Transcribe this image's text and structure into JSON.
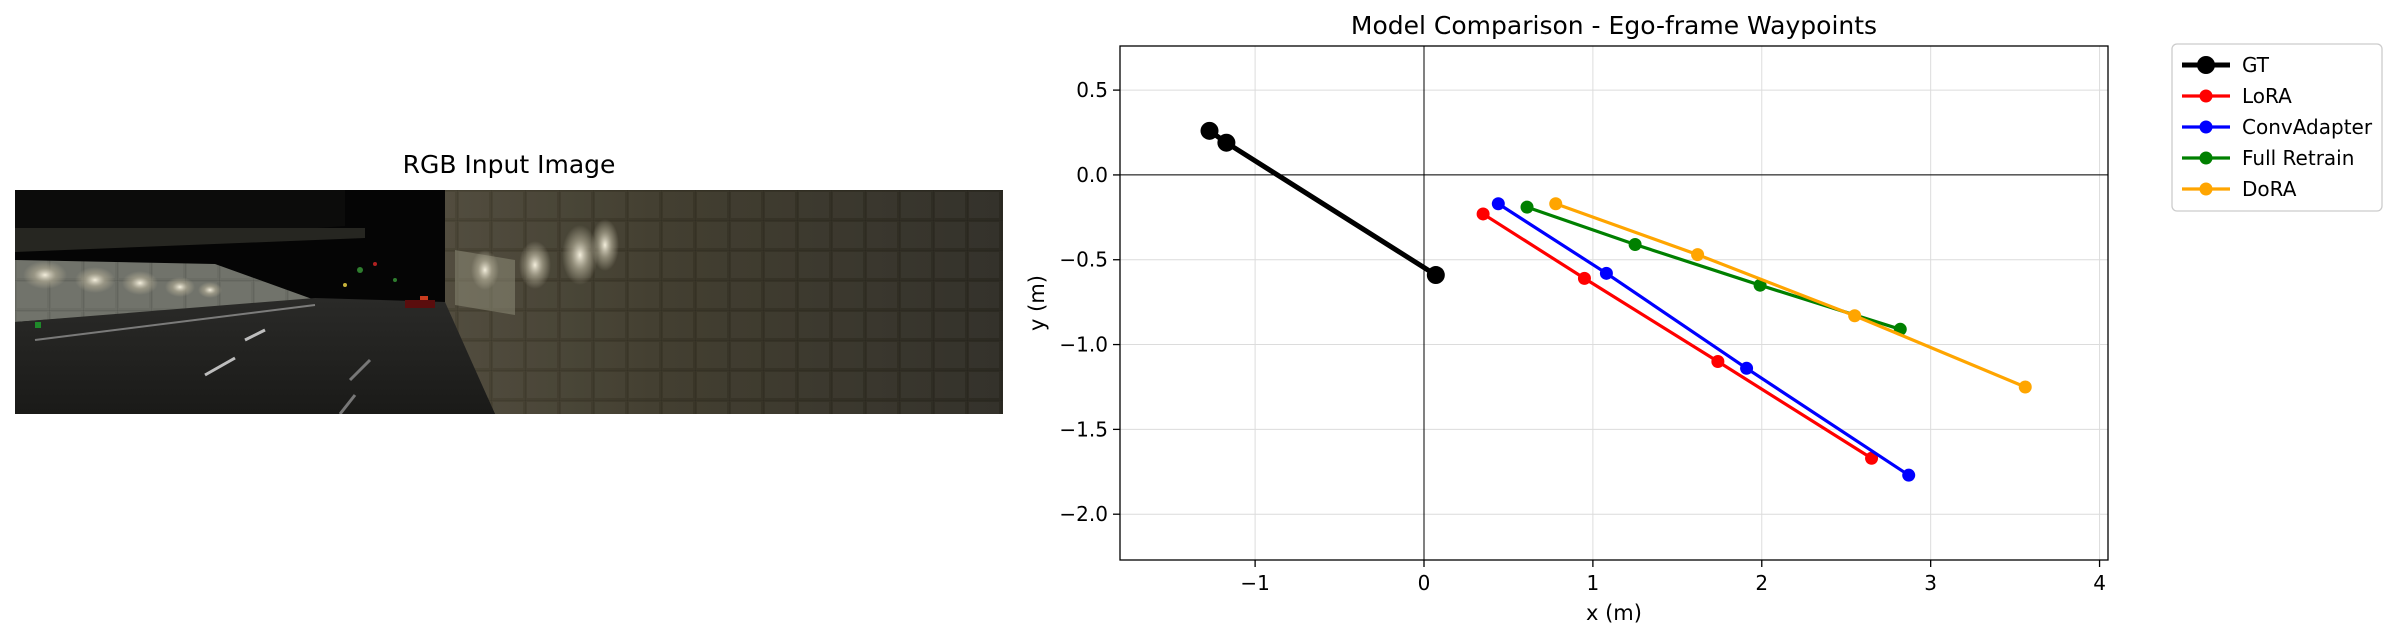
{
  "image_panel": {
    "title": "RGB Input Image"
  },
  "chart_data": {
    "type": "line",
    "title": "Model Comparison - Ego-frame Waypoints",
    "xlabel": "x (m)",
    "ylabel": "y (m)",
    "xlim": [
      -1.8,
      4.05
    ],
    "ylim": [
      -2.27,
      0.76
    ],
    "xticks": [
      -1,
      0,
      1,
      2,
      3,
      4
    ],
    "yticks": [
      0.5,
      0.0,
      -0.5,
      -1.0,
      -1.5,
      -2.0
    ],
    "xtick_labels": [
      "−1",
      "0",
      "1",
      "2",
      "3",
      "4"
    ],
    "ytick_labels": [
      "0.5",
      "0.0",
      "−0.5",
      "−1.0",
      "−1.5",
      "−2.0"
    ],
    "grid": true,
    "reference_lines": {
      "x": 0,
      "y": 0
    },
    "legend_position": "outside-top-right",
    "series": [
      {
        "name": "GT",
        "color": "#000000",
        "width": 5,
        "marker": 9,
        "points": [
          [
            -1.27,
            0.26
          ],
          [
            -1.17,
            0.19
          ],
          [
            0.07,
            -0.59
          ]
        ]
      },
      {
        "name": "LoRA",
        "color": "#ff0000",
        "width": 3.2,
        "marker": 6.5,
        "points": [
          [
            0.35,
            -0.23
          ],
          [
            0.95,
            -0.61
          ],
          [
            1.74,
            -1.1
          ],
          [
            2.65,
            -1.67
          ]
        ]
      },
      {
        "name": "ConvAdapter",
        "color": "#0000ff",
        "width": 3.2,
        "marker": 6.5,
        "points": [
          [
            0.44,
            -0.17
          ],
          [
            1.08,
            -0.58
          ],
          [
            1.91,
            -1.14
          ],
          [
            2.87,
            -1.77
          ]
        ]
      },
      {
        "name": "Full Retrain",
        "color": "#008000",
        "width": 3.2,
        "marker": 6.5,
        "points": [
          [
            0.61,
            -0.19
          ],
          [
            1.25,
            -0.41
          ],
          [
            1.99,
            -0.65
          ],
          [
            2.82,
            -0.91
          ]
        ]
      },
      {
        "name": "DoRA",
        "color": "#ffa500",
        "width": 3.2,
        "marker": 6.5,
        "points": [
          [
            0.78,
            -0.17
          ],
          [
            1.62,
            -0.47
          ],
          [
            2.55,
            -0.83
          ],
          [
            3.56,
            -1.25
          ]
        ]
      }
    ]
  }
}
